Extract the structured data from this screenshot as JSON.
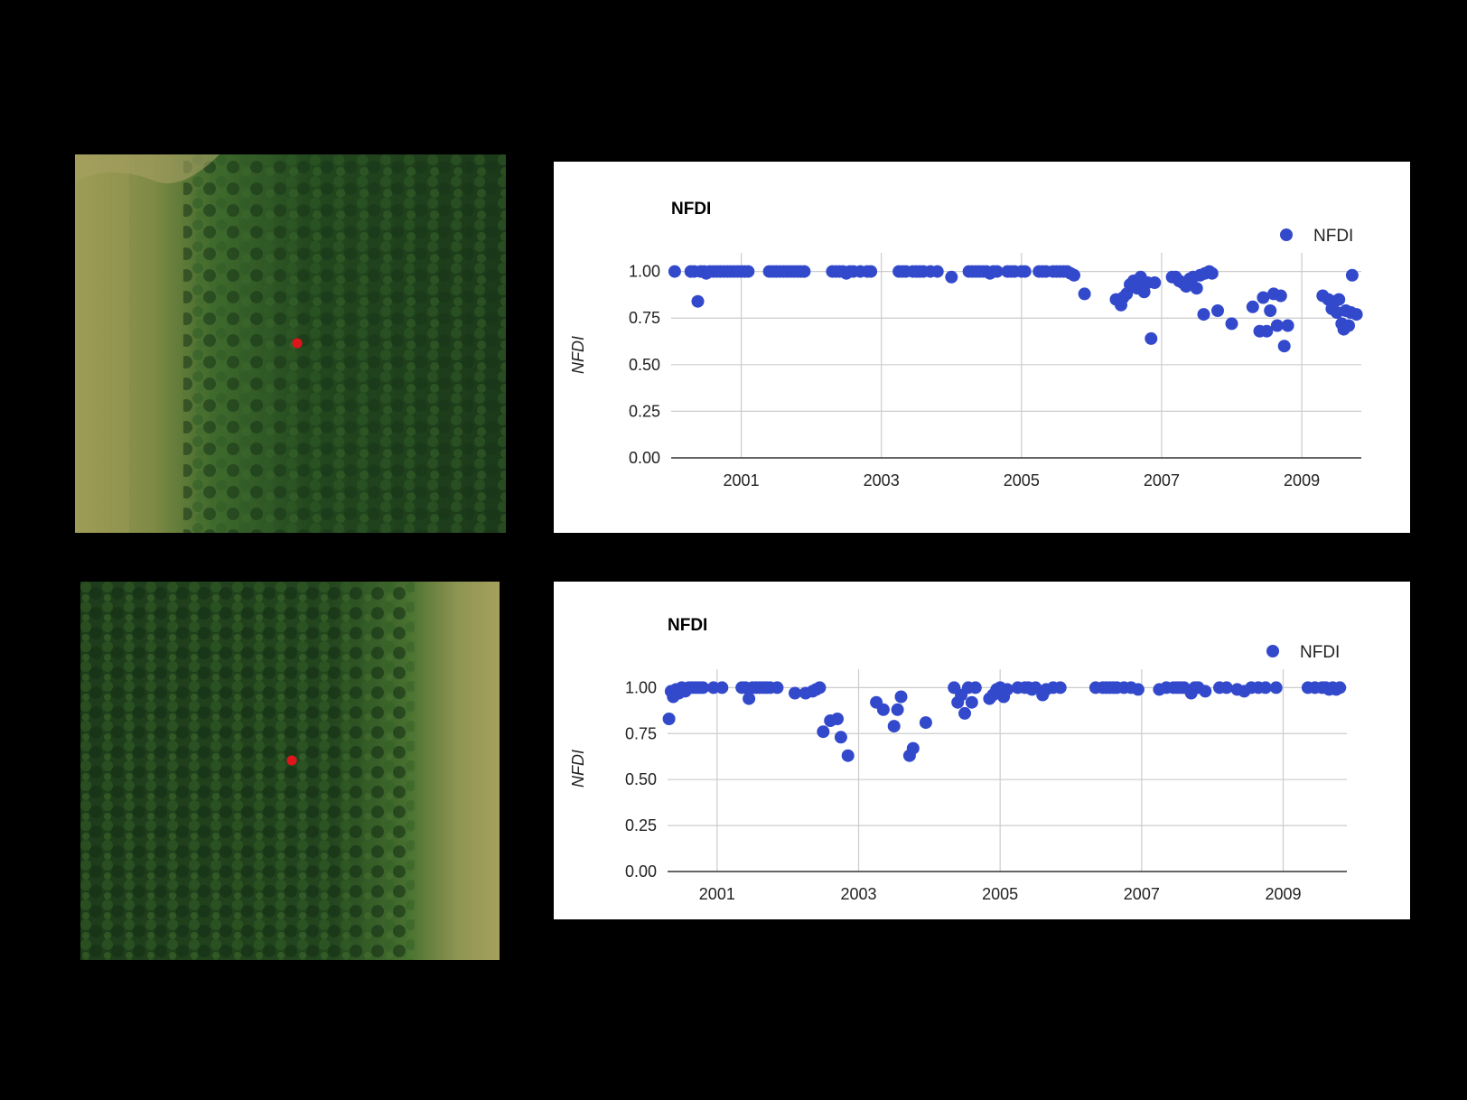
{
  "colors": {
    "point": "#3349cc",
    "marker": "#e0141b",
    "grid": "#cccccc"
  },
  "images": [
    {
      "name": "satellite-image-1",
      "description_icon": "satellite-forest-image",
      "marker_icon": "red-dot-marker",
      "grass_side": "left"
    },
    {
      "name": "satellite-image-2",
      "description_icon": "satellite-forest-image",
      "marker_icon": "red-dot-marker",
      "grass_side": "right"
    }
  ],
  "chart_data": [
    {
      "type": "scatter",
      "title": "NFDI",
      "xlabel": "",
      "ylabel": "NFDI",
      "legend": {
        "label": "NFDI",
        "position": "top-right"
      },
      "grid": true,
      "xlim": [
        2000.0,
        2009.85
      ],
      "ylim": [
        0,
        1.1
      ],
      "xticks": [
        2001,
        2003,
        2005,
        2007,
        2009
      ],
      "xtick_labels": [
        "2001",
        "2003",
        "2005",
        "2007",
        "2009"
      ],
      "yticks": [
        0,
        0.25,
        0.5,
        0.75,
        1.0
      ],
      "ytick_labels": [
        "0.00",
        "0.25",
        "0.50",
        "0.75",
        "1.00"
      ],
      "series": [
        {
          "name": "NFDI",
          "points": [
            [
              2000.05,
              1.0
            ],
            [
              2000.28,
              1.0
            ],
            [
              2000.38,
              0.84
            ],
            [
              2000.33,
              1.0
            ],
            [
              2000.42,
              1.0
            ],
            [
              2000.47,
              1.0
            ],
            [
              2000.5,
              0.99
            ],
            [
              2000.55,
              1.0
            ],
            [
              2000.6,
              1.0
            ],
            [
              2000.65,
              1.0
            ],
            [
              2000.7,
              1.0
            ],
            [
              2000.75,
              1.0
            ],
            [
              2000.8,
              1.0
            ],
            [
              2000.85,
              1.0
            ],
            [
              2000.9,
              1.0
            ],
            [
              2000.95,
              1.0
            ],
            [
              2001.0,
              1.0
            ],
            [
              2001.05,
              1.0
            ],
            [
              2001.1,
              1.0
            ],
            [
              2001.4,
              1.0
            ],
            [
              2001.45,
              1.0
            ],
            [
              2001.5,
              1.0
            ],
            [
              2001.55,
              1.0
            ],
            [
              2001.6,
              1.0
            ],
            [
              2001.65,
              1.0
            ],
            [
              2001.7,
              1.0
            ],
            [
              2001.75,
              1.0
            ],
            [
              2001.8,
              1.0
            ],
            [
              2001.85,
              1.0
            ],
            [
              2001.9,
              1.0
            ],
            [
              2002.3,
              1.0
            ],
            [
              2002.35,
              1.0
            ],
            [
              2002.4,
              1.0
            ],
            [
              2002.45,
              1.0
            ],
            [
              2002.5,
              0.99
            ],
            [
              2002.55,
              1.0
            ],
            [
              2002.6,
              1.0
            ],
            [
              2002.7,
              1.0
            ],
            [
              2002.8,
              1.0
            ],
            [
              2002.85,
              1.0
            ],
            [
              2003.25,
              1.0
            ],
            [
              2003.3,
              1.0
            ],
            [
              2003.35,
              1.0
            ],
            [
              2003.45,
              1.0
            ],
            [
              2003.5,
              1.0
            ],
            [
              2003.55,
              1.0
            ],
            [
              2003.6,
              1.0
            ],
            [
              2003.7,
              1.0
            ],
            [
              2003.8,
              1.0
            ],
            [
              2004.0,
              0.97
            ],
            [
              2004.25,
              1.0
            ],
            [
              2004.3,
              1.0
            ],
            [
              2004.35,
              1.0
            ],
            [
              2004.4,
              1.0
            ],
            [
              2004.45,
              1.0
            ],
            [
              2004.5,
              1.0
            ],
            [
              2004.55,
              0.99
            ],
            [
              2004.6,
              1.0
            ],
            [
              2004.65,
              1.0
            ],
            [
              2004.8,
              1.0
            ],
            [
              2004.85,
              1.0
            ],
            [
              2004.9,
              1.0
            ],
            [
              2005.0,
              1.0
            ],
            [
              2005.05,
              1.0
            ],
            [
              2005.25,
              1.0
            ],
            [
              2005.3,
              1.0
            ],
            [
              2005.35,
              1.0
            ],
            [
              2005.45,
              1.0
            ],
            [
              2005.5,
              1.0
            ],
            [
              2005.55,
              1.0
            ],
            [
              2005.6,
              1.0
            ],
            [
              2005.65,
              1.0
            ],
            [
              2005.7,
              0.99
            ],
            [
              2005.75,
              0.98
            ],
            [
              2005.9,
              0.88
            ],
            [
              2006.35,
              0.85
            ],
            [
              2006.42,
              0.82
            ],
            [
              2006.45,
              0.86
            ],
            [
              2006.5,
              0.88
            ],
            [
              2006.55,
              0.93
            ],
            [
              2006.6,
              0.95
            ],
            [
              2006.65,
              0.91
            ],
            [
              2006.7,
              0.97
            ],
            [
              2006.75,
              0.89
            ],
            [
              2006.8,
              0.94
            ],
            [
              2006.85,
              0.64
            ],
            [
              2006.9,
              0.94
            ],
            [
              2007.15,
              0.97
            ],
            [
              2007.2,
              0.97
            ],
            [
              2007.25,
              0.95
            ],
            [
              2007.3,
              0.94
            ],
            [
              2007.35,
              0.92
            ],
            [
              2007.4,
              0.96
            ],
            [
              2007.45,
              0.97
            ],
            [
              2007.5,
              0.91
            ],
            [
              2007.55,
              0.98
            ],
            [
              2007.6,
              0.77
            ],
            [
              2007.62,
              0.99
            ],
            [
              2007.68,
              1.0
            ],
            [
              2007.72,
              0.99
            ],
            [
              2007.8,
              0.79
            ],
            [
              2008.0,
              0.72
            ],
            [
              2008.3,
              0.81
            ],
            [
              2008.4,
              0.68
            ],
            [
              2008.45,
              0.86
            ],
            [
              2008.5,
              0.68
            ],
            [
              2008.55,
              0.79
            ],
            [
              2008.6,
              0.88
            ],
            [
              2008.65,
              0.71
            ],
            [
              2008.7,
              0.87
            ],
            [
              2008.75,
              0.6
            ],
            [
              2008.8,
              0.71
            ],
            [
              2009.3,
              0.87
            ],
            [
              2009.38,
              0.85
            ],
            [
              2009.43,
              0.8
            ],
            [
              2009.47,
              0.84
            ],
            [
              2009.5,
              0.78
            ],
            [
              2009.53,
              0.85
            ],
            [
              2009.57,
              0.72
            ],
            [
              2009.6,
              0.69
            ],
            [
              2009.63,
              0.79
            ],
            [
              2009.67,
              0.71
            ],
            [
              2009.7,
              0.78
            ],
            [
              2009.72,
              0.98
            ],
            [
              2009.78,
              0.77
            ]
          ]
        }
      ]
    },
    {
      "type": "scatter",
      "title": "NFDI",
      "xlabel": "",
      "ylabel": "NFDI",
      "legend": {
        "label": "NFDI",
        "position": "top-right"
      },
      "grid": true,
      "xlim": [
        2000.3,
        2009.9
      ],
      "ylim": [
        0,
        1.1
      ],
      "xticks": [
        2001,
        2003,
        2005,
        2007,
        2009
      ],
      "xtick_labels": [
        "2001",
        "2003",
        "2005",
        "2007",
        "2009"
      ],
      "yticks": [
        0,
        0.25,
        0.5,
        0.75,
        1.0
      ],
      "ytick_labels": [
        "0.00",
        "0.25",
        "0.50",
        "0.75",
        "1.00"
      ],
      "series": [
        {
          "name": "NFDI",
          "points": [
            [
              2000.32,
              0.83
            ],
            [
              2000.35,
              0.98
            ],
            [
              2000.38,
              0.95
            ],
            [
              2000.42,
              0.99
            ],
            [
              2000.46,
              0.97
            ],
            [
              2000.5,
              1.0
            ],
            [
              2000.55,
              0.98
            ],
            [
              2000.6,
              1.0
            ],
            [
              2000.65,
              1.0
            ],
            [
              2000.7,
              1.0
            ],
            [
              2000.75,
              1.0
            ],
            [
              2000.8,
              1.0
            ],
            [
              2000.95,
              1.0
            ],
            [
              2001.07,
              1.0
            ],
            [
              2001.35,
              1.0
            ],
            [
              2001.4,
              1.0
            ],
            [
              2001.45,
              0.94
            ],
            [
              2001.5,
              1.0
            ],
            [
              2001.55,
              1.0
            ],
            [
              2001.6,
              1.0
            ],
            [
              2001.65,
              1.0
            ],
            [
              2001.7,
              1.0
            ],
            [
              2001.75,
              1.0
            ],
            [
              2001.85,
              1.0
            ],
            [
              2002.1,
              0.97
            ],
            [
              2002.25,
              0.97
            ],
            [
              2002.35,
              0.98
            ],
            [
              2002.4,
              0.99
            ],
            [
              2002.45,
              1.0
            ],
            [
              2002.5,
              0.76
            ],
            [
              2002.6,
              0.82
            ],
            [
              2002.7,
              0.83
            ],
            [
              2002.75,
              0.73
            ],
            [
              2002.85,
              0.63
            ],
            [
              2003.25,
              0.92
            ],
            [
              2003.35,
              0.88
            ],
            [
              2003.5,
              0.79
            ],
            [
              2003.55,
              0.88
            ],
            [
              2003.6,
              0.95
            ],
            [
              2003.72,
              0.63
            ],
            [
              2003.77,
              0.67
            ],
            [
              2003.95,
              0.81
            ],
            [
              2004.35,
              1.0
            ],
            [
              2004.4,
              0.92
            ],
            [
              2004.45,
              0.96
            ],
            [
              2004.5,
              0.86
            ],
            [
              2004.55,
              1.0
            ],
            [
              2004.6,
              0.92
            ],
            [
              2004.65,
              1.0
            ],
            [
              2004.85,
              0.94
            ],
            [
              2004.9,
              0.96
            ],
            [
              2004.95,
              0.99
            ],
            [
              2005.0,
              1.0
            ],
            [
              2005.05,
              0.95
            ],
            [
              2005.1,
              0.99
            ],
            [
              2005.25,
              1.0
            ],
            [
              2005.35,
              1.0
            ],
            [
              2005.4,
              1.0
            ],
            [
              2005.45,
              0.99
            ],
            [
              2005.5,
              1.0
            ],
            [
              2005.6,
              0.96
            ],
            [
              2005.65,
              0.99
            ],
            [
              2005.75,
              1.0
            ],
            [
              2005.85,
              1.0
            ],
            [
              2006.35,
              1.0
            ],
            [
              2006.45,
              1.0
            ],
            [
              2006.5,
              1.0
            ],
            [
              2006.55,
              1.0
            ],
            [
              2006.6,
              1.0
            ],
            [
              2006.65,
              1.0
            ],
            [
              2006.75,
              1.0
            ],
            [
              2006.85,
              1.0
            ],
            [
              2006.95,
              0.99
            ],
            [
              2007.25,
              0.99
            ],
            [
              2007.35,
              1.0
            ],
            [
              2007.45,
              1.0
            ],
            [
              2007.5,
              1.0
            ],
            [
              2007.55,
              1.0
            ],
            [
              2007.6,
              1.0
            ],
            [
              2007.7,
              0.97
            ],
            [
              2007.75,
              1.0
            ],
            [
              2007.8,
              1.0
            ],
            [
              2007.9,
              0.98
            ],
            [
              2008.1,
              1.0
            ],
            [
              2008.2,
              1.0
            ],
            [
              2008.35,
              0.99
            ],
            [
              2008.45,
              0.98
            ],
            [
              2008.55,
              1.0
            ],
            [
              2008.65,
              1.0
            ],
            [
              2008.75,
              1.0
            ],
            [
              2008.9,
              1.0
            ],
            [
              2009.35,
              1.0
            ],
            [
              2009.45,
              1.0
            ],
            [
              2009.55,
              1.0
            ],
            [
              2009.6,
              1.0
            ],
            [
              2009.65,
              0.99
            ],
            [
              2009.7,
              1.0
            ],
            [
              2009.75,
              0.99
            ],
            [
              2009.8,
              1.0
            ]
          ]
        }
      ]
    }
  ]
}
